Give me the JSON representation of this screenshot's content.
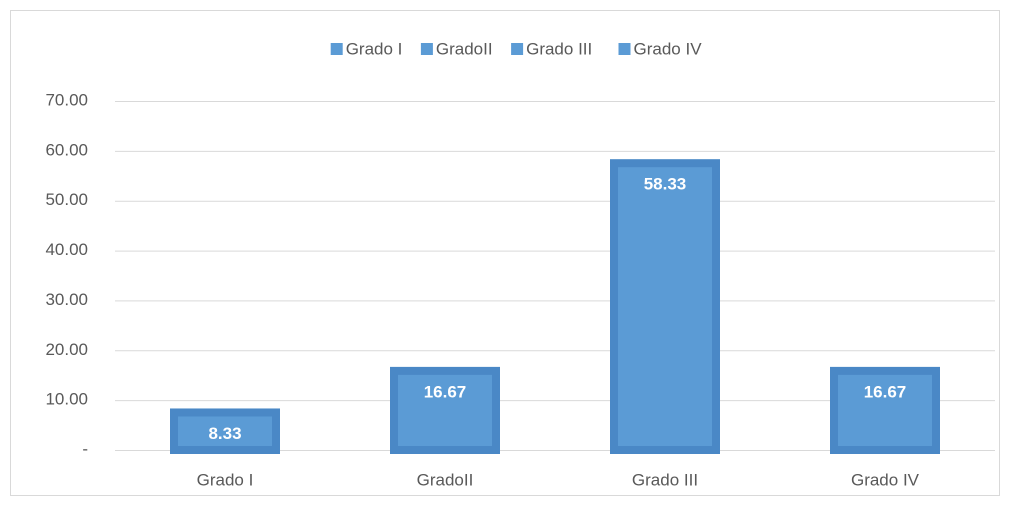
{
  "chart_data": {
    "type": "bar",
    "categories": [
      "Grado I",
      "GradoII",
      "Grado III",
      "Grado IV"
    ],
    "values": [
      8.33,
      16.67,
      58.33,
      16.67
    ],
    "color": "#5b9bd5",
    "ylim": [
      0,
      70
    ],
    "yticks": [
      {
        "value": 0,
        "label": "-"
      },
      {
        "value": 10,
        "label": "10.00"
      },
      {
        "value": 20,
        "label": "20.00"
      },
      {
        "value": 30,
        "label": "30.00"
      },
      {
        "value": 40,
        "label": "40.00"
      },
      {
        "value": 50,
        "label": "50.00"
      },
      {
        "value": 60,
        "label": "60.00"
      },
      {
        "value": 70,
        "label": "70.00"
      }
    ],
    "grid": true,
    "legend": "top"
  }
}
